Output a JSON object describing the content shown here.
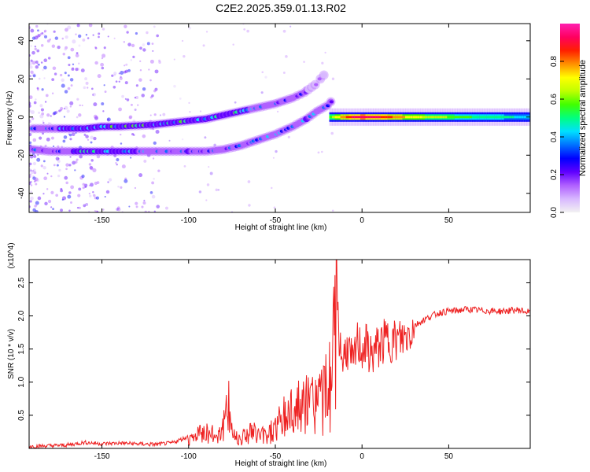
{
  "figure": {
    "title": "C2E2.2025.359.01.13.R02"
  },
  "chart_data": [
    {
      "type": "heatmap",
      "title": "C2E2.2025.359.01.13.R02",
      "xlabel": "Height of straight line (km)",
      "ylabel": "Frequency (Hz)",
      "xlim": [
        -192,
        97
      ],
      "ylim": [
        -50,
        49
      ],
      "xticks": [
        -150,
        -100,
        -50,
        0,
        50
      ],
      "xtick_labels": [
        "-150",
        "-100",
        "-50",
        "0",
        "50"
      ],
      "yticks": [
        -40,
        -20,
        0,
        20,
        40
      ],
      "ytick_labels": [
        "-40",
        "-20",
        "0",
        "20",
        "40"
      ],
      "colorbar": {
        "label": "Normalized spectral amplitude",
        "range": [
          0,
          1
        ],
        "ticks": [
          0.0,
          0.2,
          0.4,
          0.6,
          0.8
        ],
        "tick_labels": [
          "0.0",
          "0.2",
          "0.4",
          "0.6",
          "0.8"
        ],
        "colormap": [
          "#f2f2f2",
          "#d8b8ff",
          "#b060ff",
          "#6000ff",
          "#0000ff",
          "#0070ff",
          "#00e0ff",
          "#00ff80",
          "#40ff00",
          "#c0ff00",
          "#ffff00",
          "#ff9000",
          "#ff2000",
          "#ff0060",
          "#ff20b0"
        ]
      },
      "tracks": [
        {
          "name": "upper track",
          "points": [
            [
              -190,
              -6,
              0.35
            ],
            [
              -180,
              -6,
              0.35
            ],
            [
              -170,
              -6,
              0.45
            ],
            [
              -160,
              -6,
              0.4
            ],
            [
              -150,
              -5,
              0.45
            ],
            [
              -140,
              -5,
              0.5
            ],
            [
              -130,
              -4.5,
              0.5
            ],
            [
              -120,
              -4,
              0.45
            ],
            [
              -110,
              -3,
              0.45
            ],
            [
              -100,
              -2,
              0.5
            ],
            [
              -90,
              -1,
              0.5
            ],
            [
              -80,
              1,
              0.5
            ],
            [
              -70,
              3,
              0.45
            ],
            [
              -60,
              5,
              0.35
            ],
            [
              -50,
              7,
              0.3
            ],
            [
              -40,
              10,
              0.3
            ],
            [
              -33,
              13,
              0.25
            ],
            [
              -27,
              17,
              0.2
            ],
            [
              -24,
              20,
              0.15
            ],
            [
              -20,
              24,
              0.12
            ]
          ]
        },
        {
          "name": "lower track",
          "points": [
            [
              -190,
              -17,
              0.3
            ],
            [
              -180,
              -18,
              0.25
            ],
            [
              -170,
              -18,
              0.35
            ],
            [
              -160,
              -18,
              0.5
            ],
            [
              -150,
              -18,
              0.45
            ],
            [
              -140,
              -18,
              0.4
            ],
            [
              -130,
              -18,
              0.4
            ],
            [
              -120,
              -18,
              0.35
            ],
            [
              -110,
              -18,
              0.3
            ],
            [
              -100,
              -18,
              0.4
            ],
            [
              -90,
              -18,
              0.3
            ],
            [
              -80,
              -17,
              0.3
            ],
            [
              -70,
              -15,
              0.3
            ],
            [
              -60,
              -12,
              0.35
            ],
            [
              -50,
              -9,
              0.35
            ],
            [
              -40,
              -5,
              0.35
            ],
            [
              -32,
              -1,
              0.4
            ],
            [
              -26,
              3,
              0.35
            ],
            [
              -20,
              6,
              0.3
            ],
            [
              -16,
              10,
              0.2
            ]
          ]
        },
        {
          "name": "main band",
          "points": [
            [
              -18,
              0,
              0.6
            ],
            [
              -10,
              0,
              0.8
            ],
            [
              -5,
              0,
              0.9
            ],
            [
              0,
              0,
              0.95
            ],
            [
              10,
              0,
              0.9
            ],
            [
              20,
              0,
              0.8
            ],
            [
              30,
              0,
              0.7
            ],
            [
              40,
              0,
              0.65
            ],
            [
              50,
              0,
              0.6
            ],
            [
              60,
              0,
              0.55
            ],
            [
              70,
              0,
              0.5
            ],
            [
              80,
              0,
              0.5
            ],
            [
              90,
              0,
              0.45
            ],
            [
              97,
              0,
              0.45
            ]
          ]
        }
      ]
    },
    {
      "type": "line",
      "xlabel": "Height of straight line (km)",
      "ylabel": "SNR (10 * v/v)",
      "y_multiplier": "(x10^4)",
      "xlim": [
        -192,
        97
      ],
      "ylim": [
        0,
        2.85
      ],
      "xticks": [
        -150,
        -100,
        -50,
        0,
        50
      ],
      "xtick_labels": [
        "-150",
        "-100",
        "-50",
        "0",
        "50"
      ],
      "yticks": [
        0.5,
        1.0,
        1.5,
        2.0,
        2.5
      ],
      "ytick_labels": [
        "0.5",
        "1.0",
        "1.5",
        "2.0",
        "2.5"
      ],
      "series": [
        {
          "name": "SNR",
          "color": "#ee2222",
          "x": [
            -192,
            -180,
            -170,
            -160,
            -150,
            -140,
            -130,
            -120,
            -110,
            -100,
            -95,
            -90,
            -85,
            -80,
            -77,
            -74,
            -70,
            -65,
            -60,
            -55,
            -50,
            -45,
            -40,
            -35,
            -30,
            -25,
            -20,
            -17,
            -15,
            -13,
            -11,
            -9,
            -7,
            -5,
            -3,
            0,
            3,
            5,
            10,
            15,
            20,
            25,
            30,
            35,
            40,
            45,
            50,
            55,
            60,
            70,
            80,
            90,
            97
          ],
          "y": [
            0.03,
            0.04,
            0.05,
            0.09,
            0.07,
            0.08,
            0.07,
            0.06,
            0.08,
            0.18,
            0.3,
            0.4,
            0.28,
            0.5,
            0.93,
            0.3,
            0.25,
            0.4,
            0.32,
            0.3,
            0.5,
            0.7,
            0.95,
            0.88,
            1.05,
            1.2,
            1.25,
            1.9,
            2.85,
            1.6,
            1.3,
            1.55,
            1.4,
            1.2,
            1.6,
            1.5,
            1.55,
            1.4,
            1.55,
            1.65,
            1.62,
            1.68,
            1.85,
            1.93,
            2.0,
            2.05,
            2.07,
            2.08,
            2.1,
            2.08,
            2.07,
            2.09,
            2.05
          ]
        }
      ]
    }
  ]
}
